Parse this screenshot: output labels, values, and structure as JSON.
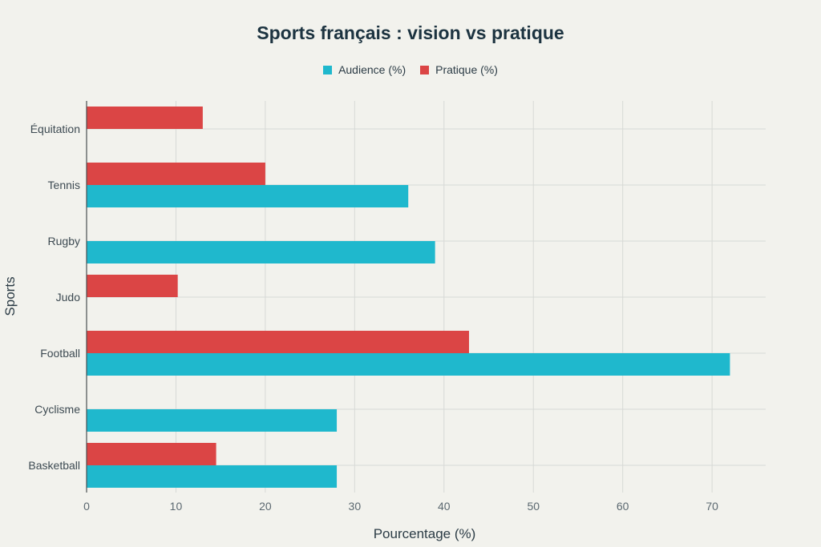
{
  "chart_data": {
    "type": "bar",
    "orientation": "horizontal",
    "title": "Sports français : vision vs pratique",
    "xlabel": "Pourcentage (%)",
    "ylabel": "Sports",
    "xlim": [
      0,
      76
    ],
    "xticks": [
      0,
      10,
      20,
      30,
      40,
      50,
      60,
      70
    ],
    "categories": [
      "Équitation",
      "Tennis",
      "Rugby",
      "Judo",
      "Football",
      "Cyclisme",
      "Basketball"
    ],
    "series": [
      {
        "name": "Audience (%)",
        "color": "#1fb8cd",
        "values": [
          null,
          36,
          39,
          null,
          72,
          28,
          28
        ]
      },
      {
        "name": "Pratique (%)",
        "color": "#db4545",
        "values": [
          13,
          20,
          null,
          10.2,
          42.8,
          null,
          14.5
        ]
      }
    ],
    "grid": true,
    "legend_position": "top-center"
  }
}
